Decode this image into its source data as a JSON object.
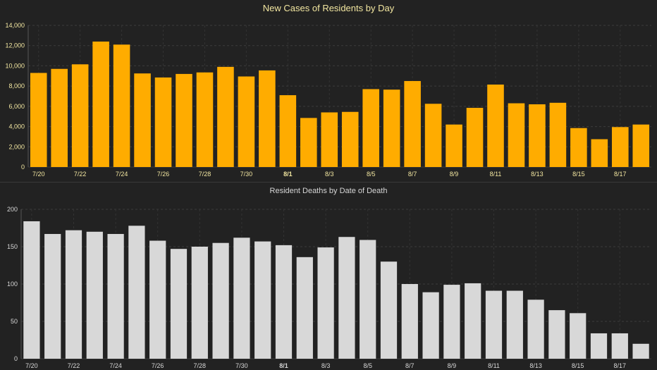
{
  "chart_data": [
    {
      "type": "bar",
      "title": "New Cases of Residents by Day",
      "xlabel": "",
      "ylabel": "",
      "ylim": [
        0,
        14000
      ],
      "yticks": [
        "0",
        "2,000",
        "4,000",
        "6,000",
        "8,000",
        "10,000",
        "12,000",
        "14,000"
      ],
      "ytick_values": [
        0,
        2000,
        4000,
        6000,
        8000,
        10000,
        12000,
        14000
      ],
      "categories": [
        "7/20",
        "7/21",
        "7/22",
        "7/23",
        "7/24",
        "7/25",
        "7/26",
        "7/27",
        "7/28",
        "7/29",
        "7/30",
        "7/31",
        "8/1",
        "8/2",
        "8/3",
        "8/4",
        "8/5",
        "8/6",
        "8/7",
        "8/8",
        "8/9",
        "8/10",
        "8/11",
        "8/12",
        "8/13",
        "8/14",
        "8/15",
        "8/16",
        "8/17",
        "8/18"
      ],
      "xtick_labels": [
        "7/20",
        "",
        "7/22",
        "",
        "7/24",
        "",
        "7/26",
        "",
        "7/28",
        "",
        "7/30",
        "",
        "8/1",
        "",
        "8/3",
        "",
        "8/5",
        "",
        "8/7",
        "",
        "8/9",
        "",
        "8/11",
        "",
        "8/13",
        "",
        "8/15",
        "",
        "8/17",
        ""
      ],
      "bold_tick": "8/1",
      "values": [
        9300,
        9700,
        10150,
        12400,
        12100,
        9250,
        8850,
        9200,
        9350,
        9900,
        8950,
        9550,
        7100,
        4850,
        5400,
        5450,
        7700,
        7650,
        8500,
        6250,
        4200,
        5850,
        8150,
        6300,
        6200,
        6350,
        3850,
        2750,
        3950,
        4200
      ],
      "grid": true,
      "colors": {
        "bar": "#ffac00",
        "text": "#f2e6a0"
      }
    },
    {
      "type": "bar",
      "title": "Resident Deaths by Date of Death",
      "xlabel": "",
      "ylabel": "",
      "ylim": [
        0,
        200
      ],
      "yticks": [
        "0",
        "50",
        "100",
        "150",
        "200"
      ],
      "ytick_values": [
        0,
        50,
        100,
        150,
        200
      ],
      "categories": [
        "7/20",
        "7/21",
        "7/22",
        "7/23",
        "7/24",
        "7/25",
        "7/26",
        "7/27",
        "7/28",
        "7/29",
        "7/30",
        "7/31",
        "8/1",
        "8/2",
        "8/3",
        "8/4",
        "8/5",
        "8/6",
        "8/7",
        "8/8",
        "8/9",
        "8/10",
        "8/11",
        "8/12",
        "8/13",
        "8/14",
        "8/15",
        "8/16",
        "8/17",
        "8/18"
      ],
      "xtick_labels": [
        "7/20",
        "",
        "7/22",
        "",
        "7/24",
        "",
        "7/26",
        "",
        "7/28",
        "",
        "7/30",
        "",
        "8/1",
        "",
        "8/3",
        "",
        "8/5",
        "",
        "8/7",
        "",
        "8/9",
        "",
        "8/11",
        "",
        "8/13",
        "",
        "8/15",
        "",
        "8/17",
        ""
      ],
      "bold_tick": "8/1",
      "values": [
        184,
        167,
        172,
        170,
        167,
        178,
        158,
        147,
        150,
        155,
        162,
        157,
        152,
        136,
        149,
        163,
        159,
        130,
        100,
        89,
        99,
        101,
        91,
        91,
        79,
        65,
        61,
        34,
        34,
        20
      ],
      "grid": true,
      "colors": {
        "bar": "#d8d8d8",
        "text": "#d6d6d6"
      }
    }
  ]
}
